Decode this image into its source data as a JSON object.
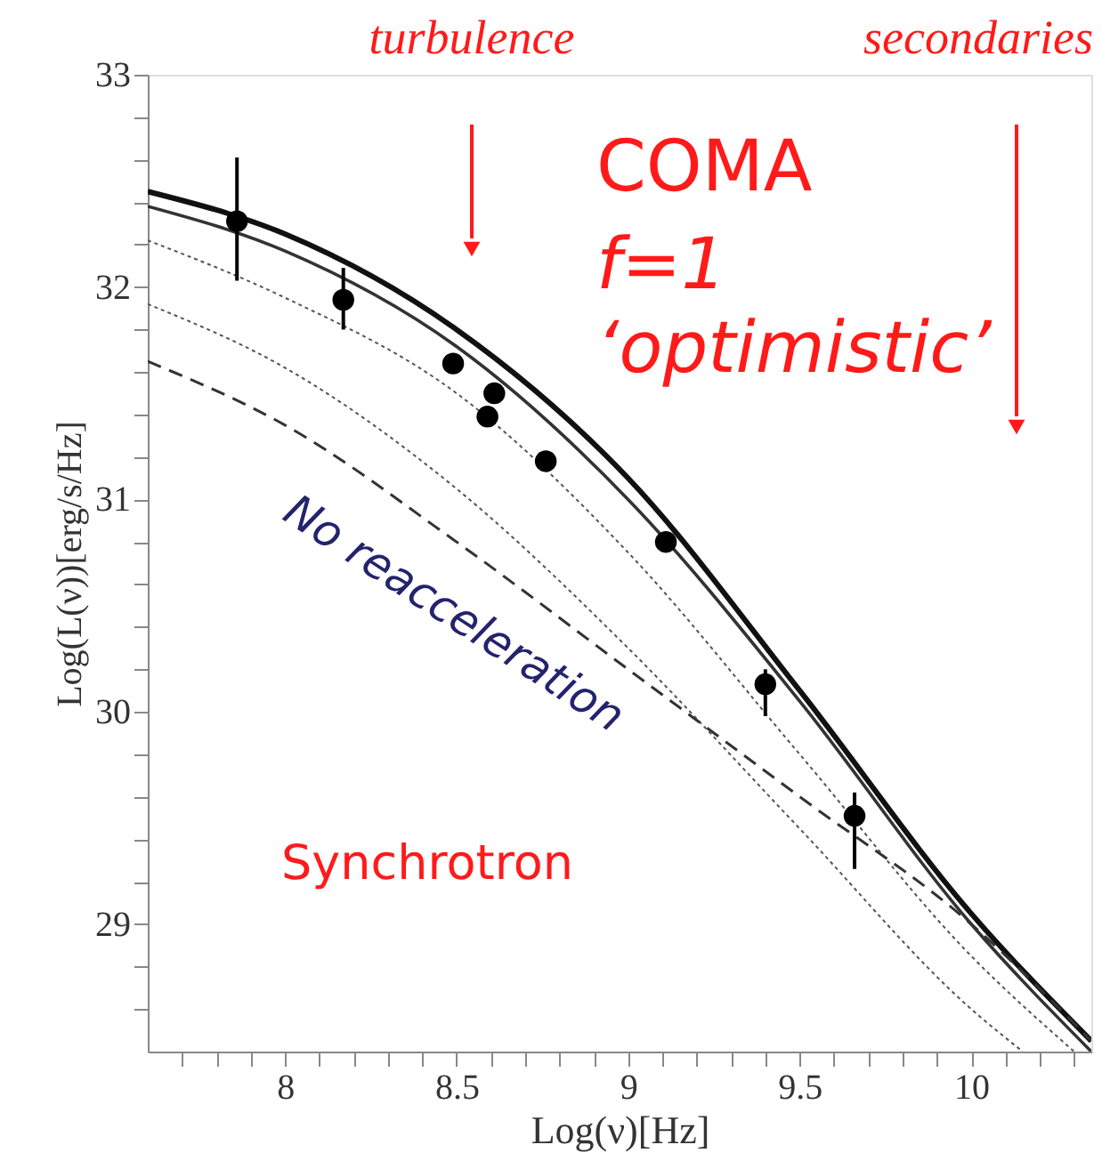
{
  "chart_data": {
    "type": "line",
    "xlabel": "Log(ν)[Hz]",
    "ylabel": "Log(L(ν))[erg/s/Hz]",
    "xlim": [
      7.6,
      10.35
    ],
    "ylim": [
      28.4,
      33
    ],
    "xticks": [
      {
        "value": 7.7,
        "label": null
      },
      {
        "value": 7.8,
        "label": null
      },
      {
        "value": 7.9,
        "label": null
      },
      8,
      {
        "value": 8.1,
        "label": null
      },
      {
        "value": 8.2,
        "label": null
      },
      {
        "value": 8.3,
        "label": null
      },
      {
        "value": 8.4,
        "label": null
      },
      8.5,
      {
        "value": 8.6,
        "label": null
      },
      {
        "value": 8.7,
        "label": null
      },
      {
        "value": 8.8,
        "label": null
      },
      {
        "value": 8.9,
        "label": null
      },
      9,
      {
        "value": 9.1,
        "label": null
      },
      {
        "value": 9.2,
        "label": null
      },
      {
        "value": 9.3,
        "label": null
      },
      {
        "value": 9.4,
        "label": null
      },
      9.5,
      {
        "value": 9.6,
        "label": null
      },
      {
        "value": 9.7,
        "label": null
      },
      {
        "value": 9.8,
        "label": null
      },
      {
        "value": 9.9,
        "label": null
      },
      10,
      {
        "value": 10.1,
        "label": null
      },
      {
        "value": 10.2,
        "label": null
      },
      {
        "value": 10.3,
        "label": null
      }
    ],
    "yticks": [
      {
        "value": 28.6,
        "label": null
      },
      {
        "value": 28.8,
        "label": null
      },
      29,
      {
        "value": 29.2,
        "label": null
      },
      {
        "value": 29.4,
        "label": null
      },
      {
        "value": 29.6,
        "label": null
      },
      {
        "value": 29.8,
        "label": null
      },
      30,
      {
        "value": 30.2,
        "label": null
      },
      {
        "value": 30.4,
        "label": null
      },
      {
        "value": 30.6,
        "label": null
      },
      {
        "value": 30.8,
        "label": null
      },
      31,
      {
        "value": 31.2,
        "label": null
      },
      {
        "value": 31.4,
        "label": null
      },
      {
        "value": 31.6,
        "label": null
      },
      {
        "value": 31.8,
        "label": null
      },
      32,
      {
        "value": 32.2,
        "label": null
      },
      {
        "value": 32.4,
        "label": null
      },
      {
        "value": 32.6,
        "label": null
      },
      {
        "value": 32.8,
        "label": null
      },
      33
    ],
    "grid": false,
    "series": [
      {
        "color": "#111111",
        "line_style": "solid",
        "x": [
          7.6,
          8,
          8.5,
          9,
          9.5,
          10,
          10.35
        ],
        "values": [
          32.45,
          32.25,
          31.8,
          31.1,
          30.1,
          29.05,
          28.45
        ]
      },
      {
        "color": "#333333",
        "line_style": "solid",
        "x": [
          7.6,
          8,
          8.5,
          9,
          9.5,
          10,
          10.35
        ],
        "values": [
          32.38,
          32.17,
          31.72,
          31.0,
          30.05,
          29.0,
          28.4
        ]
      },
      {
        "color": "#555555",
        "line_style": "dotted",
        "x": [
          7.6,
          8,
          8.5,
          9,
          9.5,
          10,
          10.3
        ],
        "values": [
          32.22,
          31.95,
          31.5,
          30.75,
          29.8,
          28.85,
          28.4
        ]
      },
      {
        "color": "#555555",
        "line_style": "dotted",
        "x": [
          7.6,
          8,
          8.5,
          9,
          9.5,
          10,
          10.15
        ],
        "values": [
          31.92,
          31.62,
          31.05,
          30.3,
          29.45,
          28.6,
          28.4
        ]
      },
      {
        "color": "#333333",
        "line_style": "dashed",
        "x": [
          7.6,
          8,
          8.5,
          9,
          9.5,
          10,
          10.35
        ],
        "values": [
          31.65,
          31.35,
          30.8,
          30.2,
          29.6,
          29.0,
          28.45
        ]
      },
      {
        "type": "scatter",
        "color": "#000000",
        "marker": "circle",
        "x": [
          7.86,
          8.17,
          8.49,
          8.61,
          8.59,
          8.76,
          9.11,
          9.4,
          9.66
        ],
        "values": [
          32.31,
          31.94,
          31.64,
          31.5,
          31.39,
          31.18,
          30.8,
          30.13,
          29.51
        ],
        "errors": [
          [
            32.03,
            32.61
          ],
          [
            31.8,
            32.09
          ],
          null,
          null,
          null,
          null,
          null,
          [
            29.98,
            30.2
          ],
          [
            29.26,
            29.62
          ]
        ]
      }
    ],
    "annotations": [
      "turbulence",
      "secondaries",
      "COMA",
      "f=1",
      "‘optimistic’",
      "No reacceleration",
      "Synchrotron"
    ]
  }
}
